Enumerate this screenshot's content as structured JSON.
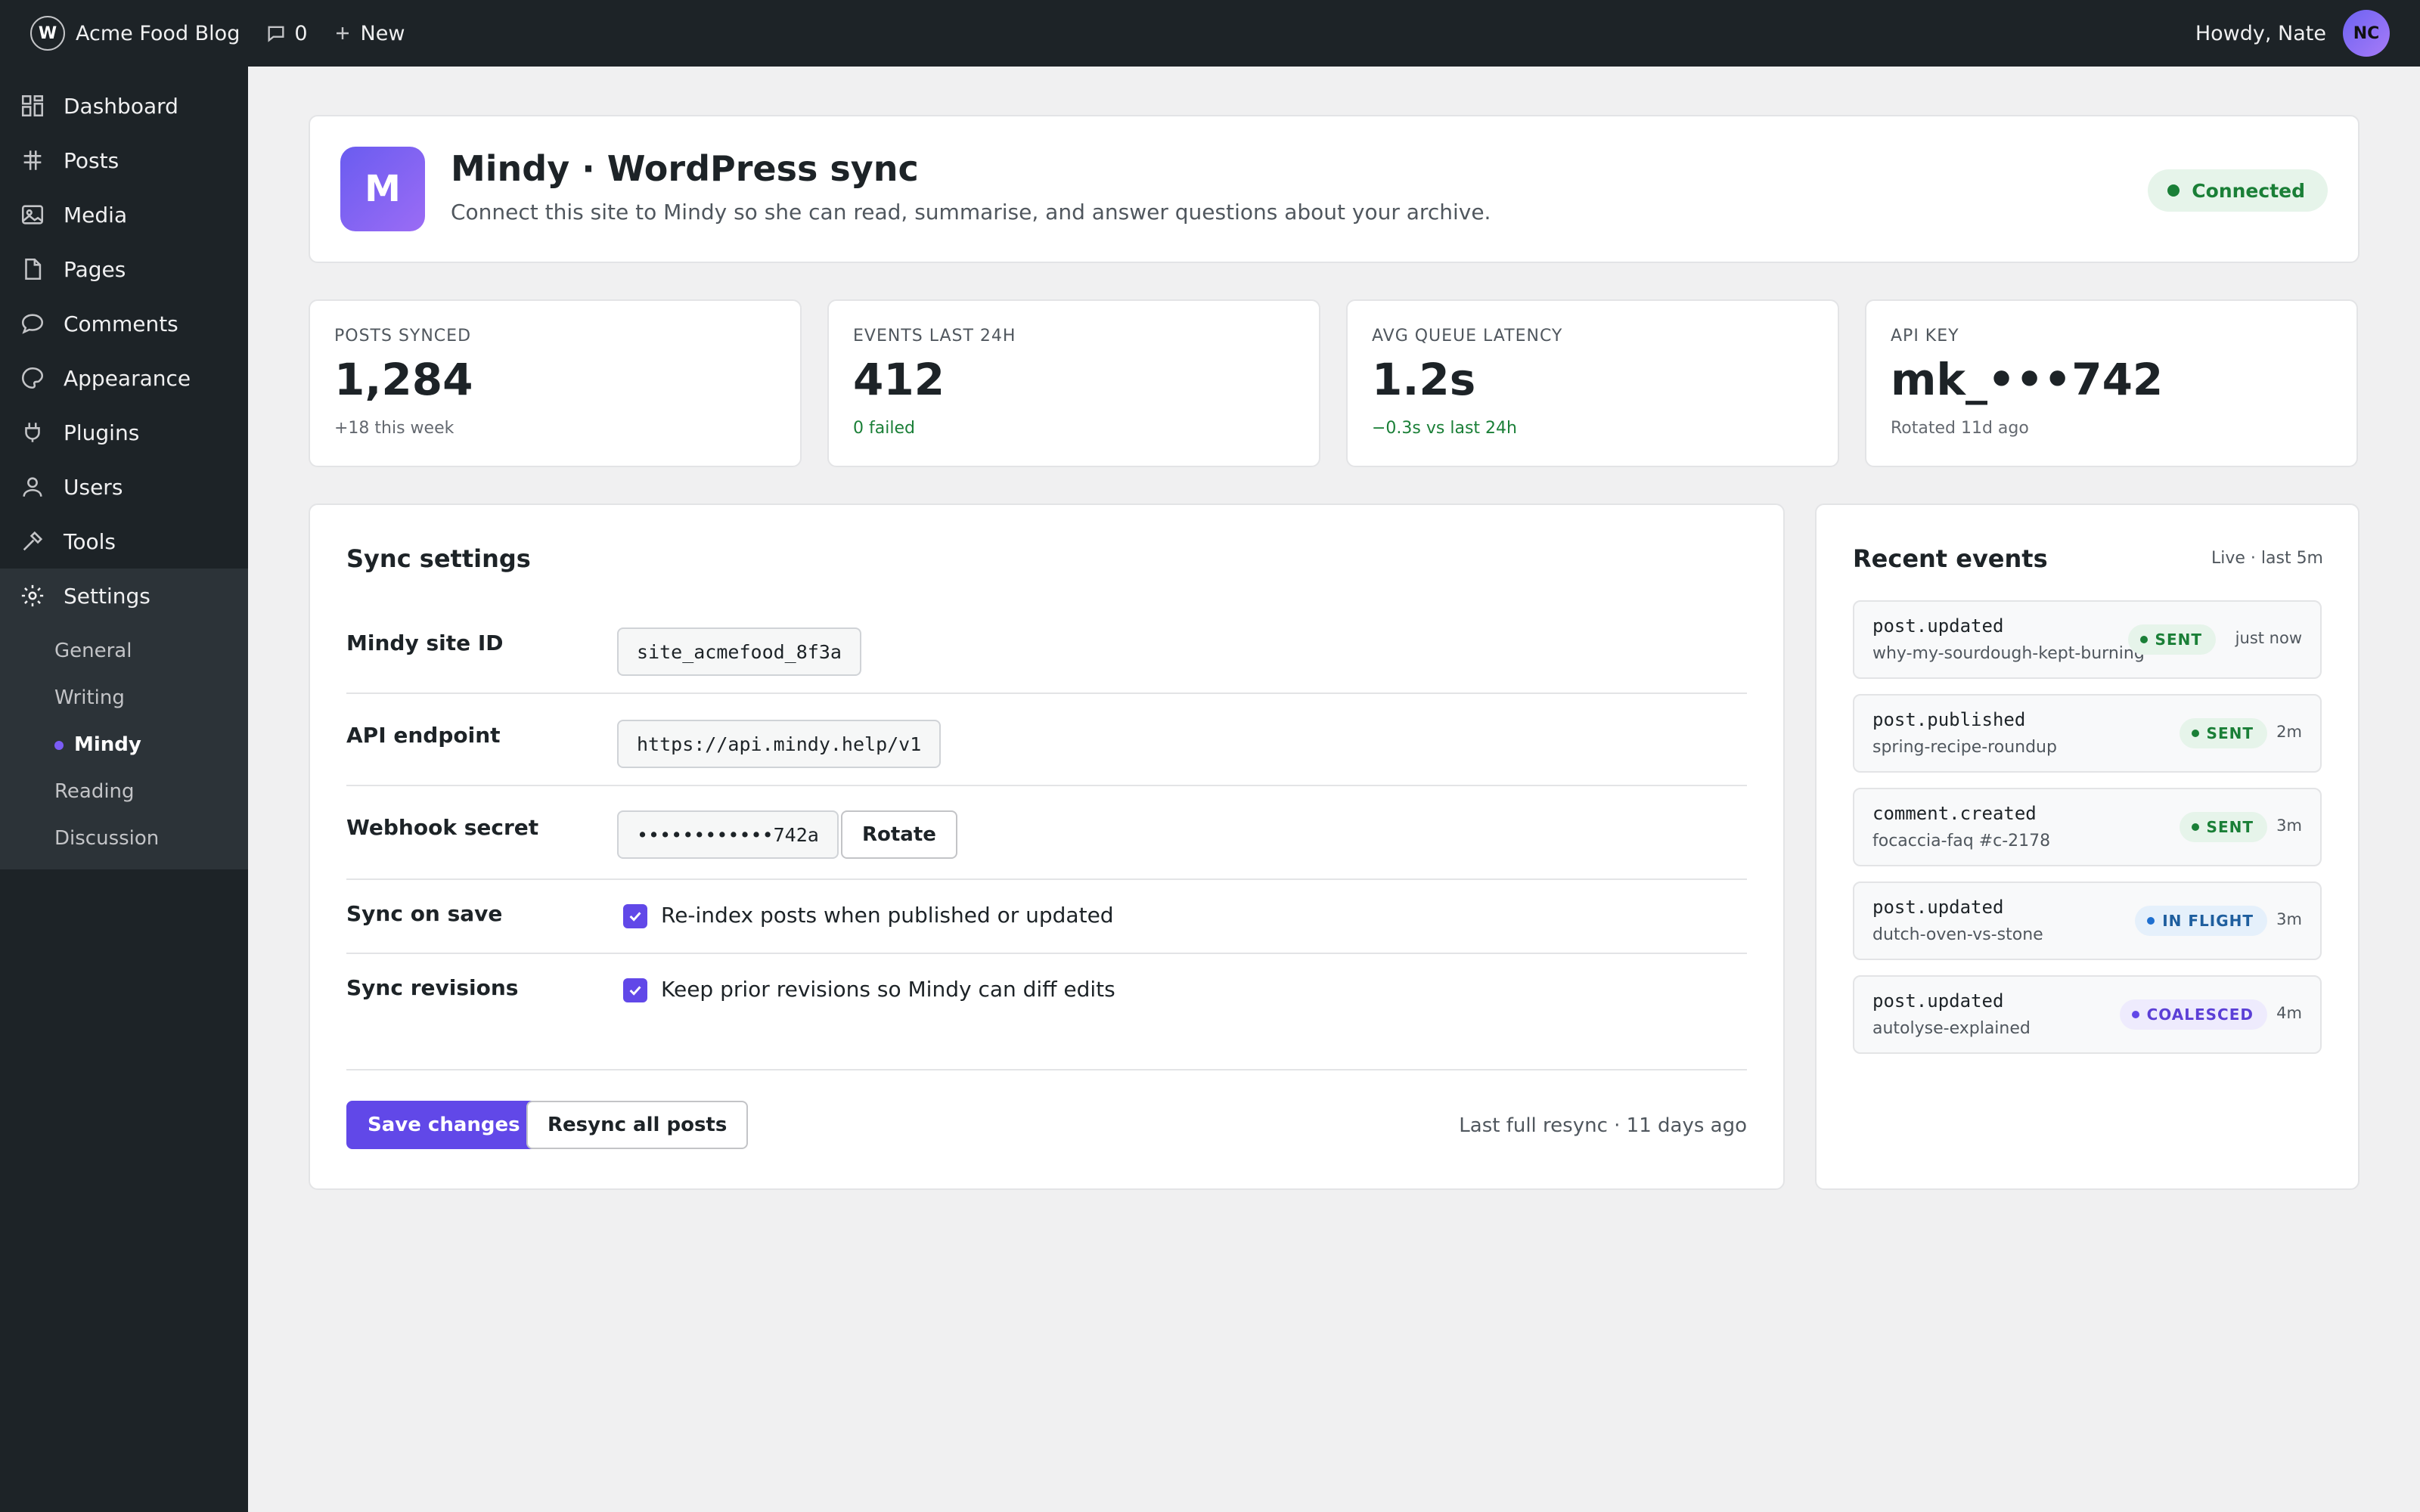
{
  "adminbar": {
    "wp_logo": "W",
    "site_name": "Acme Food Blog",
    "comments_count": "0",
    "new_label": "New",
    "howdy": "Howdy, Nate",
    "avatar_initials": "NC"
  },
  "sidebar": {
    "items": [
      {
        "label": "Dashboard",
        "icon": "dashboard-icon"
      },
      {
        "label": "Posts",
        "icon": "pin-icon"
      },
      {
        "label": "Media",
        "icon": "media-icon"
      },
      {
        "label": "Pages",
        "icon": "page-icon"
      },
      {
        "label": "Comments",
        "icon": "comment-icon"
      },
      {
        "label": "Appearance",
        "icon": "brush-icon"
      },
      {
        "label": "Plugins",
        "icon": "plug-icon"
      },
      {
        "label": "Users",
        "icon": "user-icon"
      },
      {
        "label": "Tools",
        "icon": "wrench-icon"
      },
      {
        "label": "Settings",
        "icon": "gear-icon"
      }
    ],
    "settings_submenu": [
      "General",
      "Writing",
      "Mindy",
      "Reading",
      "Discussion"
    ],
    "current_submenu": "Mindy"
  },
  "header": {
    "logo_letter": "M",
    "title": "Mindy · WordPress sync",
    "subtitle": "Connect this site to Mindy so she can read, summarise, and answer questions about your archive.",
    "status": "Connected"
  },
  "stats": [
    {
      "label": "POSTS SYNCED",
      "value": "1,284",
      "note": "+18 this week"
    },
    {
      "label": "EVENTS LAST 24H",
      "value": "412",
      "note": "0 failed"
    },
    {
      "label": "AVG QUEUE LATENCY",
      "value": "1.2s",
      "note": "−0.3s vs last 24h"
    },
    {
      "label": "API KEY",
      "value": "mk_•••742",
      "note": "Rotated 11d ago"
    }
  ],
  "settings": {
    "title": "Sync settings",
    "site_id_label": "Mindy site ID",
    "site_id_value": "site_acmefood_8f3a",
    "endpoint_label": "API endpoint",
    "endpoint_value": "https://api.mindy.help/v1",
    "secret_label": "Webhook secret",
    "secret_value": "••••••••••••742a",
    "rotate_label": "Rotate",
    "sync_save_label": "Sync on save",
    "sync_save_text": "Re-index posts when published or updated",
    "sync_save_checked": true,
    "sync_rev_label": "Sync revisions",
    "sync_rev_text": "Keep prior revisions so Mindy can diff edits",
    "sync_rev_checked": true,
    "save_label": "Save changes",
    "resync_label": "Resync all posts",
    "last_resync": "Last full resync · 11 days ago"
  },
  "events": {
    "title": "Recent events",
    "live_label": "Live · last 5m",
    "items": [
      {
        "name": "post.updated",
        "slug": "why-my-sourdough-kept-burning",
        "status": "SENT",
        "time": "just now"
      },
      {
        "name": "post.published",
        "slug": "spring-recipe-roundup",
        "status": "SENT",
        "time": "2m"
      },
      {
        "name": "comment.created",
        "slug": "focaccia-faq #c-2178",
        "status": "SENT",
        "time": "3m"
      },
      {
        "name": "post.updated",
        "slug": "dutch-oven-vs-stone",
        "status": "IN FLIGHT",
        "time": "3m"
      },
      {
        "name": "post.updated",
        "slug": "autolyse-explained",
        "status": "COALESCED",
        "time": "4m"
      }
    ]
  },
  "colors": {
    "accent": "#6148e8",
    "adminbar": "#1d2327",
    "success": "#1a7f37",
    "info": "#1e5e9e"
  }
}
